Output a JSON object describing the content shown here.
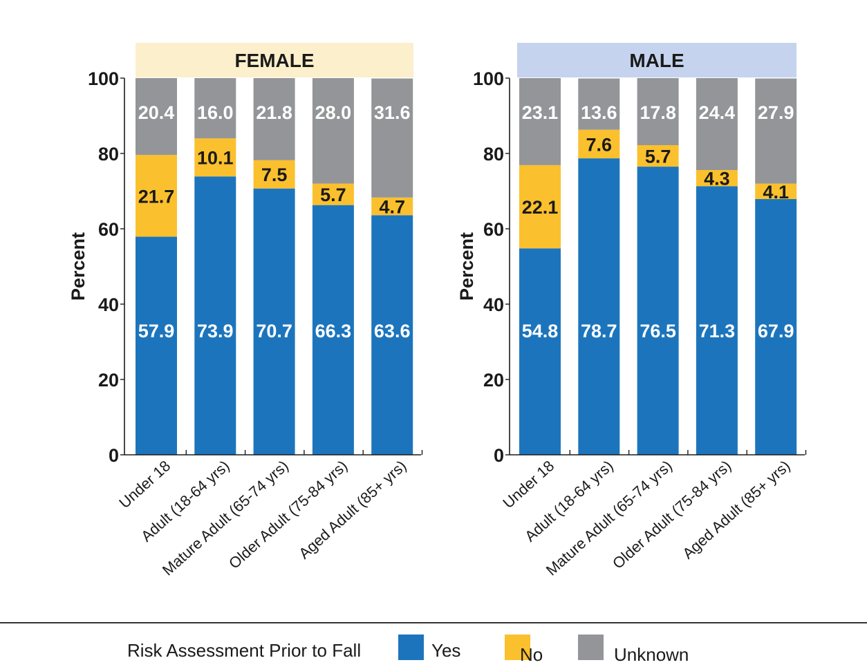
{
  "chart_data": [
    {
      "type": "bar",
      "stacked": true,
      "title": "FEMALE",
      "xlabel": "",
      "ylabel": "Percent",
      "ylim": [
        0,
        100
      ],
      "yticks": [
        0,
        20,
        40,
        60,
        80,
        100
      ],
      "categories": [
        "Under 18",
        "Adult (18-64 yrs)",
        "Mature Adult (65-74 yrs)",
        "Older Adult (75-84 yrs)",
        "Aged Adult (85+ yrs)"
      ],
      "series": [
        {
          "name": "Yes",
          "color": "#1c75bc",
          "label_color": "#ffffff",
          "values": [
            57.9,
            73.9,
            70.7,
            66.3,
            63.6
          ]
        },
        {
          "name": "No",
          "color": "#fbc02d",
          "label_color": "#1a1a1a",
          "values": [
            21.7,
            10.1,
            7.5,
            5.7,
            4.7
          ]
        },
        {
          "name": "Unknown",
          "color": "#939598",
          "label_color": "#ffffff",
          "values": [
            20.4,
            16.0,
            21.8,
            28.0,
            31.6
          ]
        }
      ],
      "header_color": "#fcefcc"
    },
    {
      "type": "bar",
      "stacked": true,
      "title": "MALE",
      "xlabel": "",
      "ylabel": "Percent",
      "ylim": [
        0,
        100
      ],
      "yticks": [
        0,
        20,
        40,
        60,
        80,
        100
      ],
      "categories": [
        "Under 18",
        "Adult (18-64 yrs)",
        "Mature Adult (65-74 yrs)",
        "Older Adult (75-84 yrs)",
        "Aged Adult (85+ yrs)"
      ],
      "series": [
        {
          "name": "Yes",
          "color": "#1c75bc",
          "label_color": "#ffffff",
          "values": [
            54.8,
            78.7,
            76.5,
            71.3,
            67.9
          ]
        },
        {
          "name": "No",
          "color": "#fbc02d",
          "label_color": "#1a1a1a",
          "values": [
            22.1,
            7.6,
            5.7,
            4.3,
            4.1
          ]
        },
        {
          "name": "Unknown",
          "color": "#939598",
          "label_color": "#ffffff",
          "values": [
            23.1,
            13.6,
            17.8,
            24.4,
            27.9
          ]
        }
      ],
      "header_color": "#c5d3ee"
    }
  ],
  "legend": {
    "title": "Risk Assessment Prior to Fall",
    "placement": "bottom",
    "items": [
      {
        "label": "Yes",
        "color": "#1c75bc"
      },
      {
        "label": "No",
        "color": "#fbc02d"
      },
      {
        "label": "Unknown",
        "color": "#939598"
      }
    ]
  }
}
